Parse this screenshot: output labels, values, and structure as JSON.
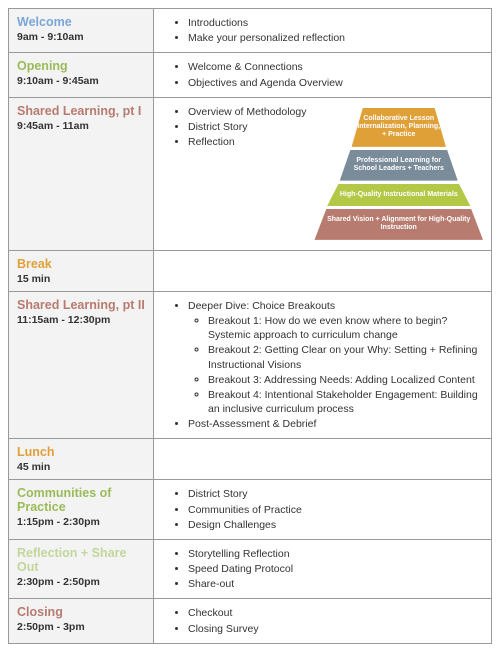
{
  "colors": {
    "welcome": "#7aa6d8",
    "opening": "#9bbb59",
    "shared1": "#b77b6f",
    "break": "#e0a038",
    "shared2": "#b77b6f",
    "lunch": "#e0a038",
    "communities": "#9bbb59",
    "reflection": "#c3d69b",
    "closing": "#b77b6f",
    "tier1_bg": "#e0a038",
    "tier2_bg": "#7a8b99",
    "tier3_bg": "#b3c847",
    "tier4_bg": "#b77b6f"
  },
  "rows": {
    "welcome": {
      "title": "Welcome",
      "time": "9am - 9:10am",
      "items": [
        "Introductions",
        "Make your personalized reflection"
      ]
    },
    "opening": {
      "title": "Opening",
      "time": "9:10am - 9:45am",
      "items": [
        "Welcome & Connections",
        "Objectives and Agenda Overview"
      ]
    },
    "shared1": {
      "title": "Shared Learning, pt I",
      "time": "9:45am - 11am",
      "items": [
        "Overview of Methodology",
        "District Story",
        "Reflection"
      ],
      "pyramid": [
        "Collaborative Lesson Internalization, Planning, + Practice",
        "Professional Learning for School Leaders + Teachers",
        "High-Quality Instructional Materials",
        "Shared Vision + Alignment for High-Quality Instruction"
      ]
    },
    "break": {
      "title": "Break",
      "time": "15 min"
    },
    "shared2": {
      "title": "Shared Learning, pt II",
      "time": "11:15am - 12:30pm",
      "items": [
        "Deeper Dive: Choice Breakouts",
        "Post-Assessment & Debrief"
      ],
      "breakouts": [
        "Breakout 1: How do we even know where to begin? Systemic approach to curriculum change",
        "Breakout 2: Getting Clear on your Why: Setting + Refining Instructional Visions",
        "Breakout 3: Addressing Needs: Adding Localized Content",
        "Breakout 4: Intentional Stakeholder Engagement: Building an inclusive curriculum process"
      ]
    },
    "lunch": {
      "title": "Lunch",
      "time": "45 min"
    },
    "communities": {
      "title": "Communities of Practice",
      "time": "1:15pm - 2:30pm",
      "items": [
        "District Story",
        "Communities of Practice",
        "Design Challenges"
      ]
    },
    "reflection": {
      "title": "Reflection + Share Out",
      "time": "2:30pm - 2:50pm",
      "items": [
        "Storytelling Reflection",
        "Speed Dating Protocol",
        "Share-out"
      ]
    },
    "closing": {
      "title": "Closing",
      "time": "2:50pm - 3pm",
      "items": [
        "Checkout",
        "Closing Survey"
      ]
    }
  }
}
